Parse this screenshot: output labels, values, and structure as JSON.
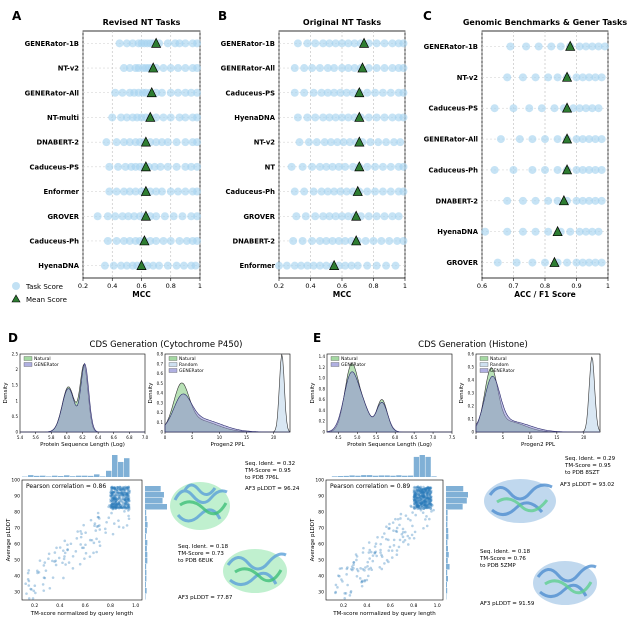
{
  "panel_letters": [
    "A",
    "B",
    "C",
    "D",
    "E"
  ],
  "legend": {
    "task_score": "Task Score",
    "mean_score": "Mean Score"
  },
  "colors": {
    "dot": "#a8d4ef",
    "mean_marker": "#2e7d32",
    "natural": "#7dc87a",
    "generator": "#8f8fd4",
    "random": "#b9d3ea",
    "scatter": "#2b7bba",
    "protein_green": "#8de3a8",
    "protein_blue": "#8cb8e0"
  },
  "chart_data": [
    {
      "type": "scatter",
      "title": "Revised NT Tasks",
      "xlabel": "MCC",
      "xlim": [
        0.2,
        1.0
      ],
      "xticks": [
        "0.2",
        "0.4",
        "0.6",
        "0.8",
        "1"
      ],
      "categories": [
        "GENERator-1B",
        "NT-v2",
        "GENERator-All",
        "NT-multi",
        "DNABERT-2",
        "Caduceus-PS",
        "Enformer",
        "GROVER",
        "Caduceus-Ph",
        "HyenaDNA"
      ],
      "mean_scores": [
        0.7,
        0.68,
        0.67,
        0.66,
        0.63,
        0.63,
        0.63,
        0.63,
        0.62,
        0.6
      ],
      "task_scores": [
        [
          0.45,
          0.5,
          0.54,
          0.58,
          0.6,
          0.62,
          0.64,
          0.66,
          0.68,
          0.72,
          0.78,
          0.83,
          0.86,
          0.9,
          0.95,
          0.98
        ],
        [
          0.48,
          0.52,
          0.56,
          0.58,
          0.61,
          0.63,
          0.65,
          0.67,
          0.7,
          0.75,
          0.8,
          0.85,
          0.9,
          0.95,
          0.98
        ],
        [
          0.42,
          0.47,
          0.52,
          0.55,
          0.58,
          0.61,
          0.63,
          0.66,
          0.7,
          0.74,
          0.8,
          0.85,
          0.9,
          0.94,
          0.98
        ],
        [
          0.4,
          0.46,
          0.5,
          0.54,
          0.57,
          0.6,
          0.63,
          0.66,
          0.7,
          0.75,
          0.8,
          0.86,
          0.9,
          0.95,
          0.98
        ],
        [
          0.36,
          0.43,
          0.48,
          0.52,
          0.56,
          0.59,
          0.62,
          0.66,
          0.7,
          0.74,
          0.78,
          0.84,
          0.9,
          0.95,
          0.98
        ],
        [
          0.38,
          0.44,
          0.49,
          0.53,
          0.56,
          0.59,
          0.62,
          0.65,
          0.69,
          0.73,
          0.78,
          0.84,
          0.9,
          0.94,
          0.98
        ],
        [
          0.38,
          0.43,
          0.48,
          0.52,
          0.56,
          0.6,
          0.63,
          0.66,
          0.7,
          0.74,
          0.8,
          0.85,
          0.9,
          0.95,
          0.98
        ],
        [
          0.3,
          0.37,
          0.42,
          0.47,
          0.51,
          0.55,
          0.59,
          0.62,
          0.66,
          0.7,
          0.76,
          0.82,
          0.88,
          0.94,
          0.98
        ],
        [
          0.37,
          0.43,
          0.48,
          0.52,
          0.56,
          0.59,
          0.62,
          0.66,
          0.7,
          0.75,
          0.8,
          0.86,
          0.91,
          0.95,
          0.98
        ],
        [
          0.35,
          0.41,
          0.46,
          0.5,
          0.54,
          0.57,
          0.6,
          0.64,
          0.68,
          0.72,
          0.78,
          0.84,
          0.89,
          0.94,
          0.97
        ]
      ]
    },
    {
      "type": "scatter",
      "title": "Original NT Tasks",
      "xlabel": "MCC",
      "xlim": [
        0.2,
        1.0
      ],
      "xticks": [
        "0.2",
        "0.4",
        "0.6",
        "0.8",
        "1"
      ],
      "categories": [
        "GENERator-1B",
        "GENERator-All",
        "Caduceus-PS",
        "HyenaDNA",
        "NT-v2",
        "NT",
        "Caduceus-Ph",
        "GROVER",
        "DNABERT-2",
        "Enformer"
      ],
      "mean_scores": [
        0.74,
        0.73,
        0.71,
        0.71,
        0.71,
        0.71,
        0.7,
        0.69,
        0.69,
        0.55
      ],
      "task_scores": [
        [
          0.32,
          0.38,
          0.43,
          0.48,
          0.52,
          0.56,
          0.6,
          0.64,
          0.68,
          0.72,
          0.77,
          0.82,
          0.87,
          0.92,
          0.96,
          0.99
        ],
        [
          0.3,
          0.36,
          0.41,
          0.46,
          0.51,
          0.55,
          0.6,
          0.64,
          0.68,
          0.72,
          0.77,
          0.82,
          0.87,
          0.92,
          0.96,
          0.99
        ],
        [
          0.3,
          0.36,
          0.42,
          0.47,
          0.51,
          0.55,
          0.59,
          0.63,
          0.67,
          0.71,
          0.76,
          0.81,
          0.86,
          0.91,
          0.96,
          0.99
        ],
        [
          0.32,
          0.38,
          0.43,
          0.48,
          0.52,
          0.56,
          0.6,
          0.64,
          0.68,
          0.72,
          0.77,
          0.82,
          0.87,
          0.92,
          0.96,
          0.99
        ],
        [
          0.33,
          0.39,
          0.44,
          0.49,
          0.53,
          0.57,
          0.61,
          0.65,
          0.69,
          0.73,
          0.78,
          0.83,
          0.88,
          0.93,
          0.97
        ],
        [
          0.28,
          0.35,
          0.41,
          0.46,
          0.5,
          0.54,
          0.58,
          0.62,
          0.67,
          0.71,
          0.76,
          0.81,
          0.86,
          0.91,
          0.96,
          0.99
        ],
        [
          0.3,
          0.36,
          0.42,
          0.47,
          0.51,
          0.55,
          0.59,
          0.63,
          0.67,
          0.71,
          0.76,
          0.81,
          0.86,
          0.91,
          0.96,
          0.99
        ],
        [
          0.31,
          0.37,
          0.43,
          0.48,
          0.52,
          0.56,
          0.6,
          0.64,
          0.68,
          0.72,
          0.77,
          0.82,
          0.87,
          0.92,
          0.96
        ],
        [
          0.29,
          0.35,
          0.41,
          0.46,
          0.5,
          0.54,
          0.58,
          0.62,
          0.66,
          0.7,
          0.75,
          0.8,
          0.85,
          0.9,
          0.95,
          0.99
        ],
        [
          0.2,
          0.25,
          0.3,
          0.34,
          0.38,
          0.42,
          0.46,
          0.5,
          0.54,
          0.58,
          0.62,
          0.66,
          0.7,
          0.76,
          0.82,
          0.88,
          0.94
        ]
      ]
    },
    {
      "type": "scatter",
      "title": "Genomic Benchmarks & Gener Tasks",
      "xlabel": "ACC / F1 Score",
      "xlim": [
        0.6,
        1.0
      ],
      "xticks": [
        "0.6",
        "0.7",
        "0.8",
        "0.9",
        "1"
      ],
      "categories": [
        "GENERator-1B",
        "NT-v2",
        "Caduceus-PS",
        "GENERator-All",
        "Caduceus-Ph",
        "DNABERT-2",
        "HyenaDNA",
        "GROVER"
      ],
      "mean_scores": [
        0.88,
        0.87,
        0.87,
        0.87,
        0.87,
        0.86,
        0.84,
        0.83
      ],
      "task_scores": [
        [
          0.69,
          0.74,
          0.78,
          0.82,
          0.85,
          0.88,
          0.91,
          0.93,
          0.95,
          0.97,
          0.99
        ],
        [
          0.68,
          0.73,
          0.77,
          0.81,
          0.84,
          0.87,
          0.9,
          0.92,
          0.94,
          0.96,
          0.98
        ],
        [
          0.64,
          0.7,
          0.75,
          0.79,
          0.83,
          0.86,
          0.89,
          0.91,
          0.93,
          0.95,
          0.97
        ],
        [
          0.66,
          0.72,
          0.76,
          0.8,
          0.84,
          0.87,
          0.9,
          0.92,
          0.94,
          0.96,
          0.98
        ],
        [
          0.64,
          0.7,
          0.76,
          0.8,
          0.84,
          0.87,
          0.9,
          0.92,
          0.94,
          0.96,
          0.98
        ],
        [
          0.68,
          0.73,
          0.77,
          0.81,
          0.84,
          0.87,
          0.9,
          0.92,
          0.94,
          0.96,
          0.98
        ],
        [
          0.61,
          0.68,
          0.73,
          0.77,
          0.81,
          0.85,
          0.88,
          0.91,
          0.93,
          0.95,
          0.97
        ],
        [
          0.65,
          0.71,
          0.76,
          0.8,
          0.84,
          0.87,
          0.9,
          0.92,
          0.94,
          0.96,
          0.98
        ]
      ]
    },
    {
      "type": "area",
      "panel": "D",
      "title": "CDS Generation (Cytochrome P450)",
      "xlabel": "Protein Sequence Length (Log)",
      "ylabel": "Density",
      "xlim": [
        5.4,
        7.0
      ],
      "ylim": [
        0,
        2.5
      ],
      "xticks": [
        "5.4",
        "5.6",
        "5.8",
        "6.0",
        "6.2",
        "6.4",
        "6.6",
        "6.8",
        "7.0"
      ],
      "yticks": [
        "0",
        "0.5",
        "1",
        "1.5",
        "2",
        "2.5"
      ],
      "legend": [
        "Natural",
        "GENERator"
      ],
      "series": [
        {
          "name": "Natural",
          "peaks": [
            [
              6.02,
              1.45,
              0.08
            ],
            [
              6.22,
              2.1,
              0.05
            ]
          ]
        },
        {
          "name": "GENERator",
          "peaks": [
            [
              6.02,
              1.4,
              0.08
            ],
            [
              6.23,
              2.15,
              0.05
            ]
          ]
        }
      ]
    },
    {
      "type": "area",
      "panel": "D",
      "xlabel": "Progen2 PPL",
      "ylabel": "Density",
      "xlim": [
        0,
        23
      ],
      "ylim": [
        0,
        0.8
      ],
      "xticks": [
        "0",
        "5",
        "10",
        "15",
        "20"
      ],
      "yticks": [
        "0",
        "0.1",
        "0.2",
        "0.3",
        "0.4",
        "0.5",
        "0.6",
        "0.7",
        "0.8"
      ],
      "legend": [
        "Natural",
        "Random",
        "GENERator"
      ],
      "series": [
        {
          "name": "Natural",
          "peaks": [
            [
              3.0,
              0.42,
              1.4
            ],
            [
              6.0,
              0.12,
              3.5
            ]
          ]
        },
        {
          "name": "Random",
          "peaks": [
            [
              21.5,
              0.8,
              0.45
            ]
          ]
        },
        {
          "name": "GENERator",
          "peaks": [
            [
              3.2,
              0.3,
              1.6
            ],
            [
              6.5,
              0.13,
              3.8
            ]
          ]
        }
      ]
    },
    {
      "type": "scatter",
      "panel": "D",
      "xlabel": "TM-score normalized by query length",
      "ylabel": "Average pLDDT",
      "annotation": "Pearson correlation = 0.86",
      "xlim": [
        0.1,
        1.05
      ],
      "ylim": [
        25,
        100
      ],
      "xticks": [
        "0.2",
        "0.4",
        "0.6",
        "0.8",
        "1.0"
      ],
      "yticks": [
        "30",
        "40",
        "50",
        "60",
        "70",
        "80",
        "90",
        "100"
      ],
      "correlation": 0.86,
      "n_points": 420
    },
    {
      "type": "area",
      "panel": "E",
      "title": "CDS Generation (Histone)",
      "xlabel": "Protein Sequence Length (Log)",
      "ylabel": "Density",
      "xlim": [
        4.2,
        7.5
      ],
      "ylim": [
        0,
        1.45
      ],
      "xticks": [
        "4.5",
        "5.0",
        "5.5",
        "6.0",
        "6.5",
        "7.0",
        "7.5"
      ],
      "yticks": [
        "0",
        "0.2",
        "0.4",
        "0.6",
        "0.8",
        "1.0",
        "1.2",
        "1.4"
      ],
      "legend": [
        "Natural",
        "GENERator"
      ],
      "series": [
        {
          "name": "Natural",
          "peaks": [
            [
              4.85,
              1.25,
              0.18
            ],
            [
              5.2,
              0.35,
              0.15
            ],
            [
              5.65,
              0.6,
              0.14
            ]
          ]
        },
        {
          "name": "GENERator",
          "peaks": [
            [
              4.85,
              1.1,
              0.2
            ],
            [
              5.2,
              0.3,
              0.15
            ],
            [
              5.65,
              0.55,
              0.15
            ]
          ]
        }
      ]
    },
    {
      "type": "area",
      "panel": "E",
      "xlabel": "Progen2 PPL",
      "ylabel": "Density",
      "xlim": [
        0,
        23
      ],
      "ylim": [
        0,
        0.6
      ],
      "xticks": [
        "0",
        "5",
        "10",
        "15",
        "20"
      ],
      "yticks": [
        "0",
        "0.1",
        "0.2",
        "0.3",
        "0.4",
        "0.5",
        "0.6"
      ],
      "legend": [
        "Natural",
        "Random",
        "GENERator"
      ],
      "series": [
        {
          "name": "Natural",
          "peaks": [
            [
              2.8,
              0.45,
              1.2
            ],
            [
              6.0,
              0.08,
              3.0
            ]
          ]
        },
        {
          "name": "Random",
          "peaks": [
            [
              21.5,
              0.58,
              0.5
            ]
          ]
        },
        {
          "name": "GENERator",
          "peaks": [
            [
              3.0,
              0.38,
              1.4
            ],
            [
              6.5,
              0.08,
              3.5
            ]
          ]
        }
      ]
    },
    {
      "type": "scatter",
      "panel": "E",
      "xlabel": "TM-score normalized by query length",
      "ylabel": "Average pLDDT",
      "annotation": "Pearson correlation = 0.89",
      "xlim": [
        0.05,
        1.05
      ],
      "ylim": [
        25,
        100
      ],
      "xticks": [
        "0.2",
        "0.4",
        "0.6",
        "0.8",
        "1.0"
      ],
      "yticks": [
        "30",
        "40",
        "50",
        "60",
        "70",
        "80",
        "90",
        "100"
      ],
      "correlation": 0.89,
      "n_points": 520
    }
  ],
  "structures": {
    "d_top": [
      "Seq. Ident. = 0.32",
      "TM-Score = 0.95",
      "to PDB 7P6L",
      "AF3 pLDDT = 96.24"
    ],
    "d_bottom": [
      "Seq. Ident. = 0.18",
      "TM-Score = 0.73",
      "to PDB 6EUK",
      "AF3 pLDDT = 77.87"
    ],
    "e_top": [
      "Seq. Ident. = 0.29",
      "TM-Score = 0.95",
      "to PDB 8SZT",
      "AF3 pLDDT = 93.02"
    ],
    "e_bottom": [
      "Seq. Ident. = 0.18",
      "TM-Score = 0.76",
      "to PDB 5ZMP",
      "AF3 pLDDT = 91.59"
    ]
  }
}
